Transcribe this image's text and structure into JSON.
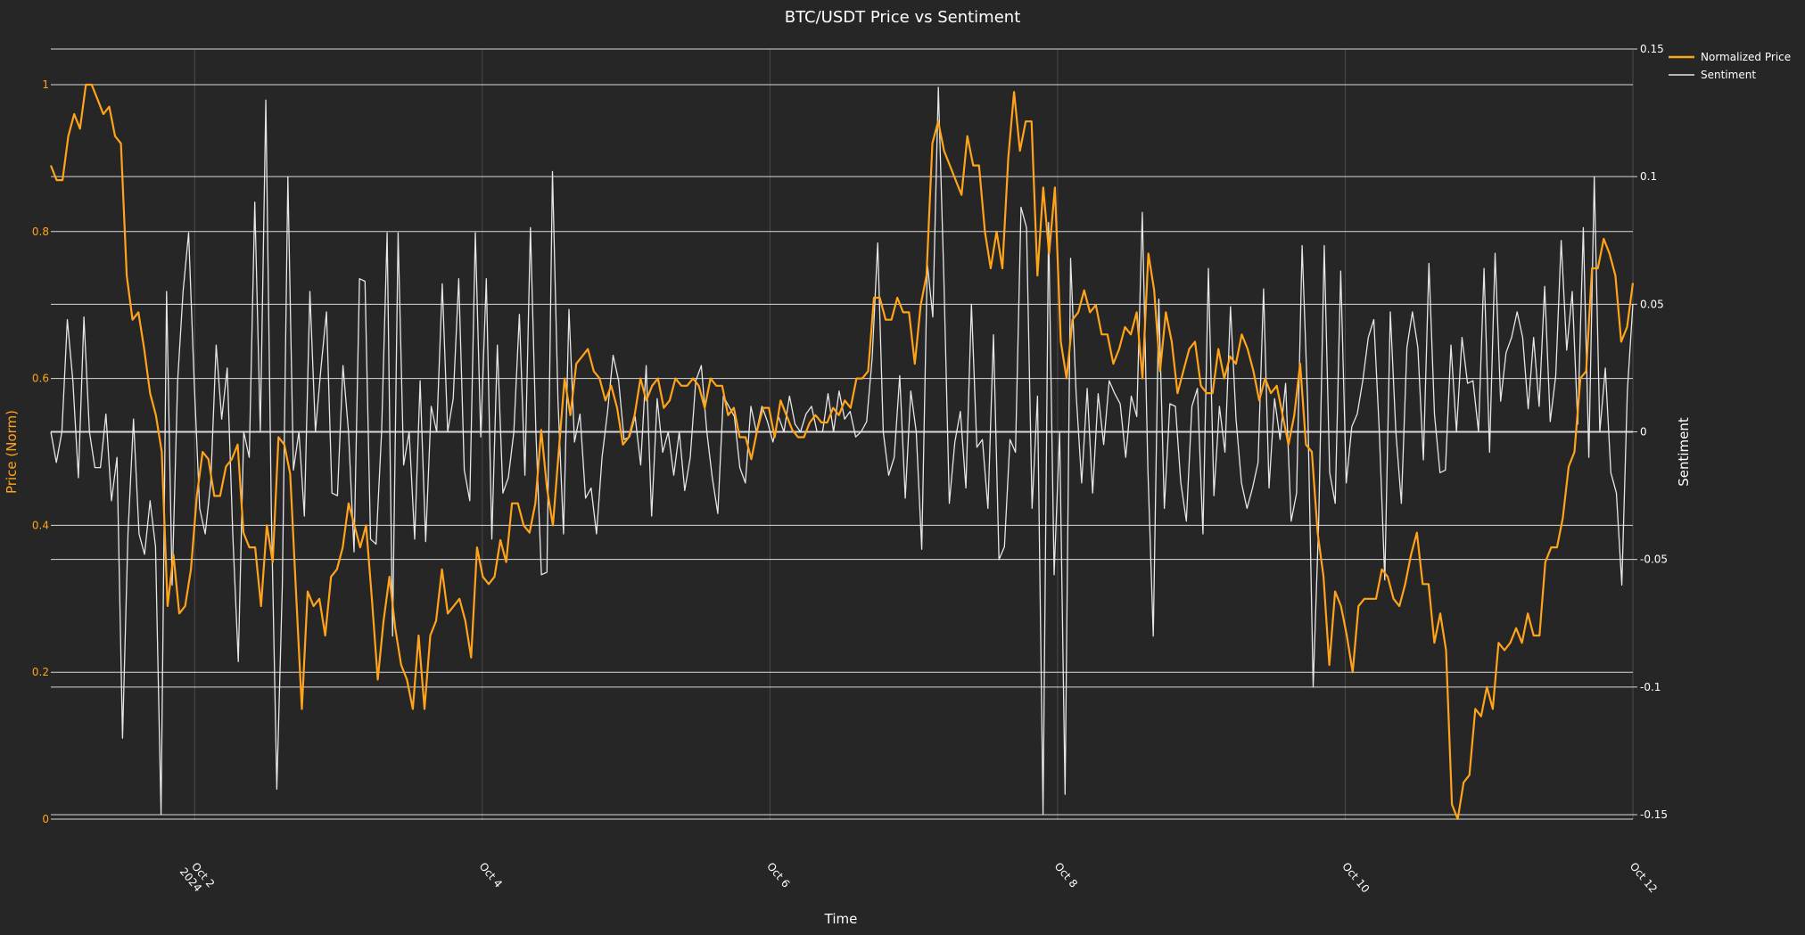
{
  "chart_data": {
    "type": "line",
    "title": "BTC/USDT Price vs Sentiment",
    "xlabel": "Time",
    "ylabel_left": "Price (Norm)",
    "ylabel_right": "Sentiment",
    "x_range": [
      "2024-10-01 00:00",
      "2024-10-12 00:00"
    ],
    "x_ticks": [
      {
        "at": "2024-10-02",
        "label": "Oct 2",
        "sub": "2024"
      },
      {
        "at": "2024-10-04",
        "label": "Oct 4",
        "sub": ""
      },
      {
        "at": "2024-10-06",
        "label": "Oct 6",
        "sub": ""
      },
      {
        "at": "2024-10-08",
        "label": "Oct 8",
        "sub": ""
      },
      {
        "at": "2024-10-10",
        "label": "Oct 10",
        "sub": ""
      },
      {
        "at": "2024-10-12",
        "label": "Oct 12",
        "sub": ""
      }
    ],
    "y_left_range": [
      0,
      1
    ],
    "y_left_ticks": [
      0,
      0.2,
      0.4,
      0.6,
      0.8,
      1
    ],
    "y_left_tick_labels": [
      "0",
      "0.2",
      "0.4",
      "0.6",
      "0.8",
      "1"
    ],
    "y_right_range": [
      -0.15,
      0.15
    ],
    "y_right_ticks": [
      -0.15,
      -0.1,
      -0.05,
      0,
      0.05,
      0.1,
      0.15
    ],
    "y_right_tick_labels": [
      "-0.15",
      "-0.1",
      "-0.05",
      "0",
      "0.05",
      "0.1",
      "0.15"
    ],
    "legend_position": "top-right",
    "grid": true,
    "colors": {
      "background": "#262626",
      "price": "#ffa31a",
      "sentiment": "#e6e6e6",
      "grid_major": "#d9d9d9",
      "grid_minor": "#4a4a4a",
      "text": "#ffffff"
    },
    "series": [
      {
        "name": "Normalized Price",
        "axis": "left",
        "points": [
          [
            "2024-10-01 00:00",
            0.89
          ],
          [
            "2024-10-01 02:00",
            0.87
          ],
          [
            "2024-10-01 04:00",
            0.87
          ],
          [
            "2024-10-01 06:00",
            0.93
          ],
          [
            "2024-10-01 08:00",
            0.96
          ],
          [
            "2024-10-01 10:00",
            0.94
          ],
          [
            "2024-10-01 12:00",
            1.0
          ],
          [
            "2024-10-01 14:00",
            0.98
          ],
          [
            "2024-10-01 16:00",
            0.96
          ],
          [
            "2024-10-01 18:00",
            0.97
          ],
          [
            "2024-10-01 20:00",
            0.92
          ],
          [
            "2024-10-01 22:00",
            0.91
          ],
          [
            "2024-10-02 00:00",
            0.74
          ],
          [
            "2024-10-02 02:00",
            0.68
          ],
          [
            "2024-10-02 04:00",
            0.69
          ],
          [
            "2024-10-02 06:00",
            0.64
          ],
          [
            "2024-10-02 08:00",
            0.58
          ],
          [
            "2024-10-02 10:00",
            0.55
          ],
          [
            "2024-10-02 12:00",
            0.49
          ],
          [
            "2024-10-02 14:00",
            0.29
          ],
          [
            "2024-10-02 16:00",
            0.36
          ],
          [
            "2024-10-02 18:00",
            0.28
          ],
          [
            "2024-10-02 20:00",
            0.29
          ],
          [
            "2024-10-02 22:00",
            0.34
          ],
          [
            "2024-10-03 00:00",
            0.44
          ],
          [
            "2024-10-03 02:00",
            0.5
          ],
          [
            "2024-10-03 04:00",
            0.49
          ],
          [
            "2024-10-03 06:00",
            0.44
          ],
          [
            "2024-10-03 08:00",
            0.43
          ],
          [
            "2024-10-03 10:00",
            0.49
          ],
          [
            "2024-10-03 12:00",
            0.49
          ],
          [
            "2024-10-03 14:00",
            0.51
          ],
          [
            "2024-10-03 16:00",
            0.39
          ],
          [
            "2024-10-03 18:00",
            0.37
          ],
          [
            "2024-10-03 20:00",
            0.37
          ],
          [
            "2024-10-03 22:00",
            0.29
          ],
          [
            "2024-10-04 00:00",
            0.4
          ],
          [
            "2024-10-04 02:00",
            0.36
          ],
          [
            "2024-10-04 04:00",
            0.52
          ],
          [
            "2024-10-04 06:00",
            0.51
          ],
          [
            "2024-10-04 08:00",
            0.47
          ],
          [
            "2024-10-04 10:00",
            0.31
          ],
          [
            "2024-10-04 12:00",
            0.15
          ],
          [
            "2024-10-04 14:00",
            0.31
          ],
          [
            "2024-10-04 16:00",
            0.29
          ],
          [
            "2024-10-04 18:00",
            0.29
          ],
          [
            "2024-10-04 20:00",
            0.25
          ],
          [
            "2024-10-04 22:00",
            0.33
          ],
          [
            "2024-10-05 00:00",
            0.33
          ],
          [
            "2024-10-05 02:00",
            0.36
          ],
          [
            "2024-10-05 04:00",
            0.43
          ],
          [
            "2024-10-05 06:00",
            0.4
          ],
          [
            "2024-10-05 08:00",
            0.37
          ],
          [
            "2024-10-05 10:00",
            0.4
          ],
          [
            "2024-10-05 12:00",
            0.3
          ],
          [
            "2024-10-05 14:00",
            0.19
          ],
          [
            "2024-10-05 16:00",
            0.27
          ],
          [
            "2024-10-05 18:00",
            0.33
          ],
          [
            "2024-10-05 20:00",
            0.26
          ],
          [
            "2024-10-05 22:00",
            0.21
          ],
          [
            "2024-10-06 00:00",
            0.15
          ],
          [
            "2024-10-06 02:00",
            0.25
          ],
          [
            "2024-10-06 04:00",
            0.15
          ],
          [
            "2024-10-06 06:00",
            0.25
          ],
          [
            "2024-10-06 08:00",
            0.27
          ],
          [
            "2024-10-06 10:00",
            0.34
          ],
          [
            "2024-10-06 12:00",
            0.28
          ],
          [
            "2024-10-06 14:00",
            0.29
          ],
          [
            "2024-10-06 16:00",
            0.3
          ],
          [
            "2024-10-06 18:00",
            0.28
          ],
          [
            "2024-10-06 20:00",
            0.22
          ],
          [
            "2024-10-06 22:00",
            0.37
          ],
          [
            "2024-10-07 00:00",
            0.33
          ],
          [
            "2024-10-07 02:00",
            0.32
          ],
          [
            "2024-10-07 04:00",
            0.33
          ],
          [
            "2024-10-07 06:00",
            0.38
          ],
          [
            "2024-10-07 08:00",
            0.35
          ],
          [
            "2024-10-07 10:00",
            0.43
          ],
          [
            "2024-10-07 12:00",
            0.43
          ],
          [
            "2024-10-07 14:00",
            0.4
          ],
          [
            "2024-10-07 16:00",
            0.39
          ],
          [
            "2024-10-07 18:00",
            0.43
          ],
          [
            "2024-10-07 20:00",
            0.53
          ],
          [
            "2024-10-07 22:00",
            0.4
          ],
          [
            "2024-10-08 00:00",
            0.5
          ],
          [
            "2024-10-08 02:00",
            0.6
          ],
          [
            "2024-10-08 04:00",
            0.55
          ],
          [
            "2024-10-08 06:00",
            0.62
          ],
          [
            "2024-10-08 08:00",
            0.63
          ],
          [
            "2024-10-08 10:00",
            0.64
          ],
          [
            "2024-10-08 12:00",
            0.61
          ],
          [
            "2024-10-08 14:00",
            0.6
          ],
          [
            "2024-10-08 16:00",
            0.57
          ],
          [
            "2024-10-08 18:00",
            0.59
          ],
          [
            "2024-10-08 20:00",
            0.56
          ],
          [
            "2024-10-08 22:00",
            0.51
          ]
        ]
      }
    ],
    "price_values": [
      0.89,
      0.87,
      0.87,
      0.93,
      0.96,
      0.94,
      1.0,
      1.0,
      0.98,
      0.96,
      0.97,
      0.93,
      0.92,
      0.74,
      0.68,
      0.69,
      0.64,
      0.58,
      0.55,
      0.5,
      0.29,
      0.36,
      0.28,
      0.29,
      0.34,
      0.44,
      0.5,
      0.49,
      0.44,
      0.44,
      0.48,
      0.49,
      0.51,
      0.39,
      0.37,
      0.37,
      0.29,
      0.4,
      0.35,
      0.52,
      0.51,
      0.47,
      0.31,
      0.15,
      0.31,
      0.29,
      0.3,
      0.25,
      0.33,
      0.34,
      0.37,
      0.43,
      0.4,
      0.37,
      0.4,
      0.3,
      0.19,
      0.27,
      0.33,
      0.26,
      0.21,
      0.19,
      0.15,
      0.25,
      0.15,
      0.25,
      0.27,
      0.34,
      0.28,
      0.29,
      0.3,
      0.27,
      0.22,
      0.37,
      0.33,
      0.32,
      0.33,
      0.38,
      0.35,
      0.43,
      0.43,
      0.4,
      0.39,
      0.43,
      0.53,
      0.45,
      0.4,
      0.5,
      0.6,
      0.55,
      0.62,
      0.63,
      0.64,
      0.61,
      0.6,
      0.57,
      0.59,
      0.56,
      0.51,
      0.52,
      0.55,
      0.6,
      0.57,
      0.59,
      0.6,
      0.56,
      0.57,
      0.6,
      0.59,
      0.59,
      0.6,
      0.59,
      0.56,
      0.6,
      0.59,
      0.59,
      0.55,
      0.56,
      0.52,
      0.52,
      0.49,
      0.53,
      0.56,
      0.56,
      0.52,
      0.57,
      0.55,
      0.53,
      0.52,
      0.52,
      0.54,
      0.55,
      0.54,
      0.54,
      0.56,
      0.55,
      0.57,
      0.56,
      0.6,
      0.6,
      0.61,
      0.71,
      0.71,
      0.68,
      0.68,
      0.71,
      0.69,
      0.69,
      0.62,
      0.7,
      0.74,
      0.92,
      0.95,
      0.91,
      0.89,
      0.87,
      0.85,
      0.93,
      0.89,
      0.89,
      0.8,
      0.75,
      0.8,
      0.75,
      0.9,
      0.99,
      0.91,
      0.95,
      0.95,
      0.74,
      0.86,
      0.77,
      0.86,
      0.65,
      0.6,
      0.68,
      0.69,
      0.72,
      0.69,
      0.7,
      0.66,
      0.66,
      0.62,
      0.64,
      0.67,
      0.66,
      0.69,
      0.6,
      0.77,
      0.72,
      0.61,
      0.69,
      0.65,
      0.58,
      0.61,
      0.64,
      0.65,
      0.59,
      0.58,
      0.58,
      0.64,
      0.6,
      0.63,
      0.62,
      0.66,
      0.64,
      0.61,
      0.57,
      0.6,
      0.58,
      0.59,
      0.55,
      0.51,
      0.55,
      0.62,
      0.51,
      0.5,
      0.39,
      0.33,
      0.21,
      0.31,
      0.29,
      0.25,
      0.2,
      0.29,
      0.3,
      0.3,
      0.3,
      0.34,
      0.33,
      0.3,
      0.29,
      0.32,
      0.36,
      0.39,
      0.32,
      0.32,
      0.24,
      0.28,
      0.23,
      0.02,
      0.0,
      0.05,
      0.06,
      0.15,
      0.14,
      0.18,
      0.15,
      0.24,
      0.23,
      0.24,
      0.26,
      0.24,
      0.28,
      0.25,
      0.25,
      0.35,
      0.37,
      0.37,
      0.41,
      0.48,
      0.5,
      0.6,
      0.61,
      0.75,
      0.75,
      0.79,
      0.77,
      0.74,
      0.65,
      0.67,
      0.73
    ],
    "sentiment_values": [
      0.0,
      -0.012,
      0.0,
      0.044,
      0.02,
      -0.018,
      0.045,
      0.0,
      -0.014,
      -0.014,
      0.007,
      -0.027,
      -0.01,
      -0.12,
      -0.04,
      0.005,
      -0.04,
      -0.048,
      -0.027,
      -0.045,
      -0.15,
      0.055,
      -0.06,
      0.02,
      0.055,
      0.078,
      0.02,
      -0.03,
      -0.04,
      -0.02,
      0.034,
      0.005,
      0.025,
      -0.04,
      -0.09,
      0.0,
      -0.01,
      0.09,
      0.0,
      0.13,
      -0.03,
      -0.14,
      -0.06,
      0.1,
      -0.015,
      0.0,
      -0.033,
      0.055,
      0.0,
      0.025,
      0.047,
      -0.024,
      -0.025,
      0.026,
      0.0,
      -0.047,
      0.06,
      0.059,
      -0.042,
      -0.044,
      0.0,
      0.078,
      -0.08,
      0.078,
      -0.013,
      0.0,
      -0.042,
      0.02,
      -0.043,
      0.01,
      0.0,
      0.058,
      0.0,
      0.013,
      0.06,
      -0.015,
      -0.027,
      0.078,
      -0.002,
      0.06,
      -0.042,
      0.034,
      -0.024,
      -0.018,
      0.0,
      0.046,
      -0.017,
      0.08,
      0.0,
      -0.056,
      -0.055,
      0.102,
      0.012,
      -0.04,
      0.048,
      -0.004,
      0.007,
      -0.026,
      -0.022,
      -0.04,
      -0.01,
      0.008,
      0.03,
      0.02,
      -0.003,
      -0.002,
      0.006,
      -0.013,
      0.026,
      -0.033,
      0.013,
      -0.008,
      0.0,
      -0.017,
      0.0,
      -0.023,
      -0.01,
      0.02,
      0.026,
      0.0,
      -0.018,
      -0.032,
      0.014,
      0.01,
      0.006,
      -0.014,
      -0.02,
      0.01,
      0.0,
      0.01,
      0.004,
      -0.004,
      0.006,
      0.0,
      0.014,
      0.003,
      0.0,
      0.007,
      0.01,
      0.0,
      0.0,
      0.015,
      0.0,
      0.016,
      0.005,
      0.008,
      -0.002,
      0.0,
      0.004,
      0.029,
      0.074,
      0.0,
      -0.017,
      -0.01,
      0.022,
      -0.026,
      0.016,
      0.0,
      -0.046,
      0.066,
      0.045,
      0.135,
      0.06,
      -0.028,
      -0.004,
      0.008,
      -0.022,
      0.05,
      -0.006,
      -0.003,
      -0.03,
      0.038,
      -0.05,
      -0.045,
      -0.003,
      -0.008,
      0.088,
      0.08,
      -0.03,
      0.014,
      -0.15,
      0.082,
      -0.056,
      0.0,
      -0.142,
      0.068,
      0.015,
      -0.02,
      0.017,
      -0.024,
      0.015,
      -0.005,
      0.02,
      0.015,
      0.011,
      -0.01,
      0.014,
      0.006,
      0.086,
      -0.014,
      -0.08,
      0.052,
      -0.03,
      0.011,
      0.01,
      -0.02,
      -0.035,
      0.01,
      0.017,
      -0.04,
      0.064,
      -0.025,
      0.01,
      -0.008,
      0.049,
      0.005,
      -0.02,
      -0.03,
      -0.022,
      -0.012,
      0.056,
      -0.022,
      0.013,
      -0.003,
      0.019,
      -0.035,
      -0.024,
      0.073,
      0.012,
      -0.1,
      -0.035,
      0.073,
      -0.016,
      -0.028,
      0.063,
      -0.02,
      0.002,
      0.007,
      0.02,
      0.037,
      0.044,
      0.0,
      -0.058,
      0.047,
      0.0,
      -0.028,
      0.033,
      0.047,
      0.033,
      -0.011,
      0.066,
      0.007,
      -0.016,
      -0.015,
      0.034,
      0.0,
      0.037,
      0.019,
      0.02,
      0.0,
      0.064,
      -0.008,
      0.07,
      0.012,
      0.031,
      0.037,
      0.047,
      0.037,
      0.009,
      0.037,
      0.01,
      0.057,
      0.004,
      0.022,
      0.075,
      0.032,
      0.055,
      0.003,
      0.08,
      -0.01,
      0.1,
      0.0,
      0.025,
      -0.016,
      -0.024,
      -0.06,
      0.016,
      0.05
    ]
  },
  "legend": {
    "price_label": "Normalized Price",
    "sentiment_label": "Sentiment"
  }
}
